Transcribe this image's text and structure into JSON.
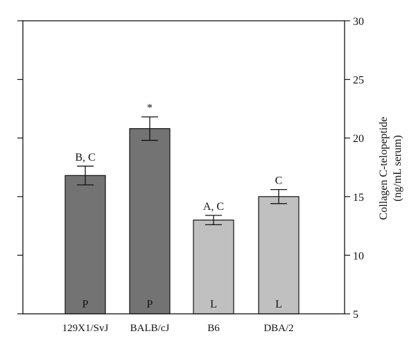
{
  "chart_data": {
    "type": "bar",
    "categories": [
      "129X1/SvJ",
      "BALB/cJ",
      "B6",
      "DBA/2"
    ],
    "values": [
      16.8,
      20.8,
      13.0,
      15.0
    ],
    "error": [
      0.8,
      1.0,
      0.4,
      0.6
    ],
    "annotations": [
      "B, C",
      "*",
      "A, C",
      "C"
    ],
    "bar_labels": [
      "P",
      "P",
      "L",
      "L"
    ],
    "bar_colors": [
      "#737373",
      "#737373",
      "#c0c0c0",
      "#c0c0c0"
    ],
    "ylabel_lines": [
      "Collagen C-telopeptide",
      "(ng/mL serum)"
    ],
    "ylim": [
      5,
      30
    ],
    "yticks": [
      5,
      10,
      15,
      20,
      25,
      30
    ],
    "y_axis_side": "right",
    "grid": false,
    "legend": null
  }
}
